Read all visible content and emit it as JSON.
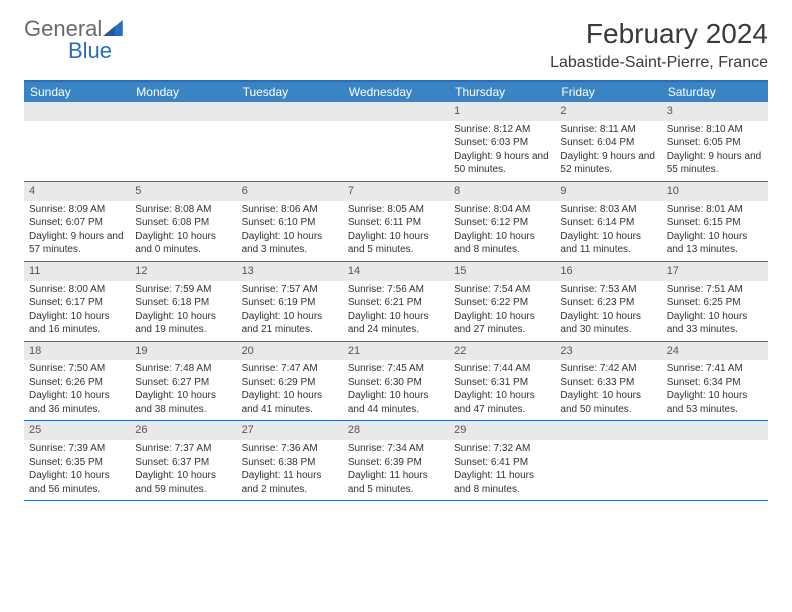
{
  "logo": {
    "general": "General",
    "blue": "Blue"
  },
  "header": {
    "month_title": "February 2024",
    "location": "Labastide-Saint-Pierre, France"
  },
  "colors": {
    "header_bar": "#3b84c4",
    "border": "#2a6db8",
    "daynum_bg": "#e8e9ea",
    "text": "#333333",
    "title_text": "#3a3a3a"
  },
  "day_headers": [
    "Sunday",
    "Monday",
    "Tuesday",
    "Wednesday",
    "Thursday",
    "Friday",
    "Saturday"
  ],
  "weeks": [
    [
      {
        "day": "",
        "sunrise": "",
        "sunset": "",
        "daylight": ""
      },
      {
        "day": "",
        "sunrise": "",
        "sunset": "",
        "daylight": ""
      },
      {
        "day": "",
        "sunrise": "",
        "sunset": "",
        "daylight": ""
      },
      {
        "day": "",
        "sunrise": "",
        "sunset": "",
        "daylight": ""
      },
      {
        "day": "1",
        "sunrise": "Sunrise: 8:12 AM",
        "sunset": "Sunset: 6:03 PM",
        "daylight": "Daylight: 9 hours and 50 minutes."
      },
      {
        "day": "2",
        "sunrise": "Sunrise: 8:11 AM",
        "sunset": "Sunset: 6:04 PM",
        "daylight": "Daylight: 9 hours and 52 minutes."
      },
      {
        "day": "3",
        "sunrise": "Sunrise: 8:10 AM",
        "sunset": "Sunset: 6:05 PM",
        "daylight": "Daylight: 9 hours and 55 minutes."
      }
    ],
    [
      {
        "day": "4",
        "sunrise": "Sunrise: 8:09 AM",
        "sunset": "Sunset: 6:07 PM",
        "daylight": "Daylight: 9 hours and 57 minutes."
      },
      {
        "day": "5",
        "sunrise": "Sunrise: 8:08 AM",
        "sunset": "Sunset: 6:08 PM",
        "daylight": "Daylight: 10 hours and 0 minutes."
      },
      {
        "day": "6",
        "sunrise": "Sunrise: 8:06 AM",
        "sunset": "Sunset: 6:10 PM",
        "daylight": "Daylight: 10 hours and 3 minutes."
      },
      {
        "day": "7",
        "sunrise": "Sunrise: 8:05 AM",
        "sunset": "Sunset: 6:11 PM",
        "daylight": "Daylight: 10 hours and 5 minutes."
      },
      {
        "day": "8",
        "sunrise": "Sunrise: 8:04 AM",
        "sunset": "Sunset: 6:12 PM",
        "daylight": "Daylight: 10 hours and 8 minutes."
      },
      {
        "day": "9",
        "sunrise": "Sunrise: 8:03 AM",
        "sunset": "Sunset: 6:14 PM",
        "daylight": "Daylight: 10 hours and 11 minutes."
      },
      {
        "day": "10",
        "sunrise": "Sunrise: 8:01 AM",
        "sunset": "Sunset: 6:15 PM",
        "daylight": "Daylight: 10 hours and 13 minutes."
      }
    ],
    [
      {
        "day": "11",
        "sunrise": "Sunrise: 8:00 AM",
        "sunset": "Sunset: 6:17 PM",
        "daylight": "Daylight: 10 hours and 16 minutes."
      },
      {
        "day": "12",
        "sunrise": "Sunrise: 7:59 AM",
        "sunset": "Sunset: 6:18 PM",
        "daylight": "Daylight: 10 hours and 19 minutes."
      },
      {
        "day": "13",
        "sunrise": "Sunrise: 7:57 AM",
        "sunset": "Sunset: 6:19 PM",
        "daylight": "Daylight: 10 hours and 21 minutes."
      },
      {
        "day": "14",
        "sunrise": "Sunrise: 7:56 AM",
        "sunset": "Sunset: 6:21 PM",
        "daylight": "Daylight: 10 hours and 24 minutes."
      },
      {
        "day": "15",
        "sunrise": "Sunrise: 7:54 AM",
        "sunset": "Sunset: 6:22 PM",
        "daylight": "Daylight: 10 hours and 27 minutes."
      },
      {
        "day": "16",
        "sunrise": "Sunrise: 7:53 AM",
        "sunset": "Sunset: 6:23 PM",
        "daylight": "Daylight: 10 hours and 30 minutes."
      },
      {
        "day": "17",
        "sunrise": "Sunrise: 7:51 AM",
        "sunset": "Sunset: 6:25 PM",
        "daylight": "Daylight: 10 hours and 33 minutes."
      }
    ],
    [
      {
        "day": "18",
        "sunrise": "Sunrise: 7:50 AM",
        "sunset": "Sunset: 6:26 PM",
        "daylight": "Daylight: 10 hours and 36 minutes."
      },
      {
        "day": "19",
        "sunrise": "Sunrise: 7:48 AM",
        "sunset": "Sunset: 6:27 PM",
        "daylight": "Daylight: 10 hours and 38 minutes."
      },
      {
        "day": "20",
        "sunrise": "Sunrise: 7:47 AM",
        "sunset": "Sunset: 6:29 PM",
        "daylight": "Daylight: 10 hours and 41 minutes."
      },
      {
        "day": "21",
        "sunrise": "Sunrise: 7:45 AM",
        "sunset": "Sunset: 6:30 PM",
        "daylight": "Daylight: 10 hours and 44 minutes."
      },
      {
        "day": "22",
        "sunrise": "Sunrise: 7:44 AM",
        "sunset": "Sunset: 6:31 PM",
        "daylight": "Daylight: 10 hours and 47 minutes."
      },
      {
        "day": "23",
        "sunrise": "Sunrise: 7:42 AM",
        "sunset": "Sunset: 6:33 PM",
        "daylight": "Daylight: 10 hours and 50 minutes."
      },
      {
        "day": "24",
        "sunrise": "Sunrise: 7:41 AM",
        "sunset": "Sunset: 6:34 PM",
        "daylight": "Daylight: 10 hours and 53 minutes."
      }
    ],
    [
      {
        "day": "25",
        "sunrise": "Sunrise: 7:39 AM",
        "sunset": "Sunset: 6:35 PM",
        "daylight": "Daylight: 10 hours and 56 minutes."
      },
      {
        "day": "26",
        "sunrise": "Sunrise: 7:37 AM",
        "sunset": "Sunset: 6:37 PM",
        "daylight": "Daylight: 10 hours and 59 minutes."
      },
      {
        "day": "27",
        "sunrise": "Sunrise: 7:36 AM",
        "sunset": "Sunset: 6:38 PM",
        "daylight": "Daylight: 11 hours and 2 minutes."
      },
      {
        "day": "28",
        "sunrise": "Sunrise: 7:34 AM",
        "sunset": "Sunset: 6:39 PM",
        "daylight": "Daylight: 11 hours and 5 minutes."
      },
      {
        "day": "29",
        "sunrise": "Sunrise: 7:32 AM",
        "sunset": "Sunset: 6:41 PM",
        "daylight": "Daylight: 11 hours and 8 minutes."
      },
      {
        "day": "",
        "sunrise": "",
        "sunset": "",
        "daylight": ""
      },
      {
        "day": "",
        "sunrise": "",
        "sunset": "",
        "daylight": ""
      }
    ]
  ]
}
